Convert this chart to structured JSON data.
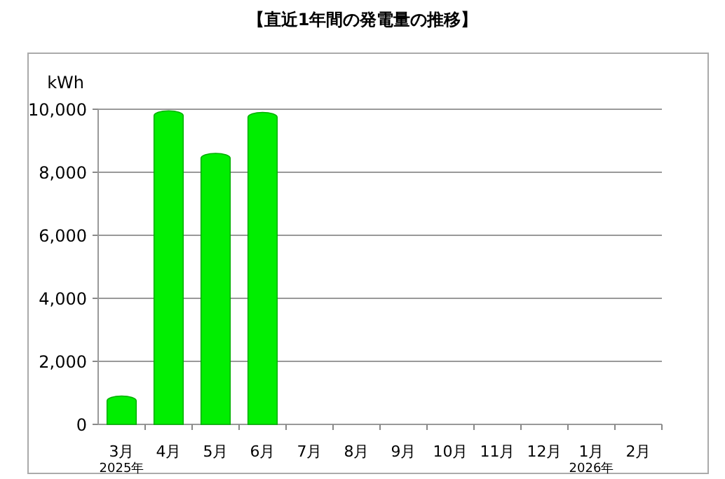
{
  "chart_data": {
    "type": "bar",
    "title": "【直近1年間の発電量の推移】",
    "ylabel": "kWh",
    "categories": [
      "3月\n2025年",
      "4月",
      "5月",
      "6月",
      "7月",
      "8月",
      "9月",
      "10月",
      "11月",
      "12月",
      "1月\n2026年",
      "2月"
    ],
    "values": [
      900,
      9950,
      8600,
      9900,
      null,
      null,
      null,
      null,
      null,
      null,
      null,
      null
    ],
    "color": "#00ee00",
    "ylim": [
      0,
      10000
    ],
    "yticks": [
      {
        "value": 0,
        "label": "0"
      },
      {
        "value": 2000,
        "label": "2,000"
      },
      {
        "value": 4000,
        "label": "4,000"
      },
      {
        "value": 6000,
        "label": "6,000"
      },
      {
        "value": 8000,
        "label": "8,000"
      },
      {
        "value": 10000,
        "label": "10,000"
      }
    ],
    "grid": "y"
  }
}
